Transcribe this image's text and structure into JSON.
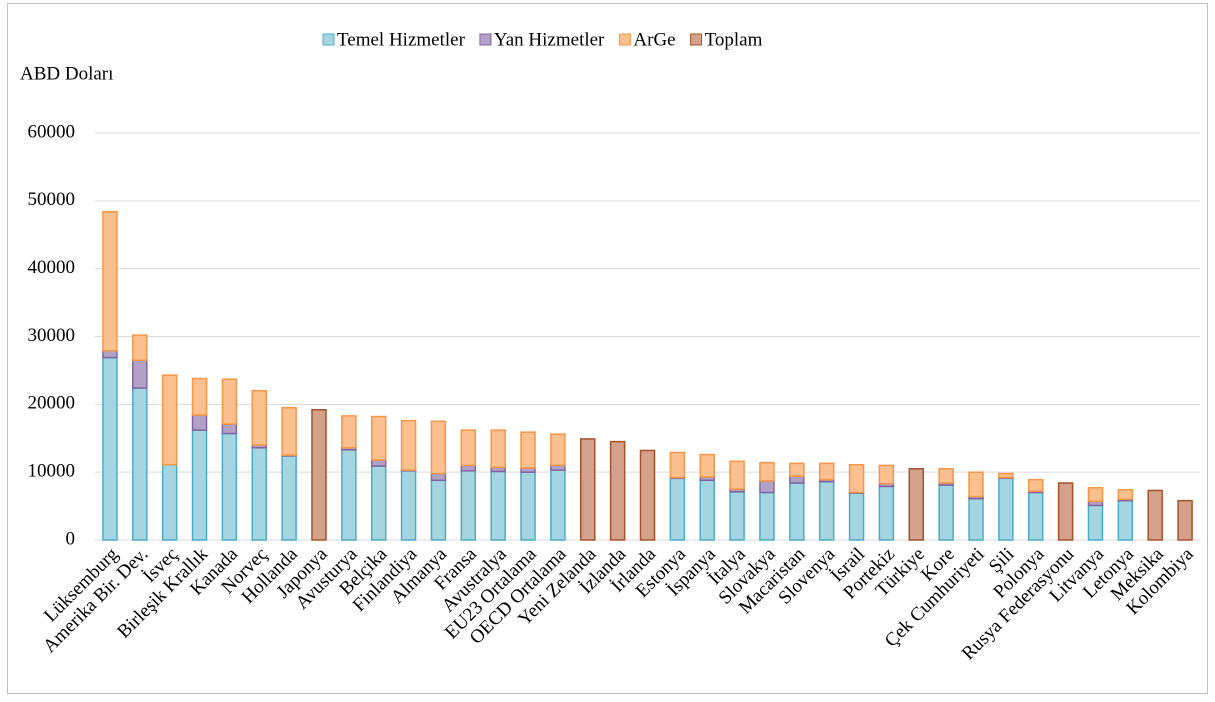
{
  "chart_data": {
    "type": "bar",
    "stacked": true,
    "y_label": "ABD Doları",
    "categories": [
      "Lüksemburg",
      "Amerika Bir. Dev.",
      "İsveç",
      "Birleşik Krallık",
      "Kanada",
      "Norveç",
      "Hollanda",
      "Japonya",
      "Avusturya",
      "Belçika",
      "Finlandiya",
      "Almanya",
      "Fransa",
      "Avustralya",
      "EU23 Ortalama",
      "OECD Ortalama",
      "Yeni Zelanda",
      "İzlanda",
      "İrlanda",
      "Estonya",
      "İspanya",
      "İtalya",
      "Slovakya",
      "Macaristan",
      "Slovenya",
      "İsrail",
      "Portekiz",
      "Türkiye",
      "Kore",
      "Çek Cumhuriyeti",
      "Şili",
      "Polonya",
      "Rusya Federasyonu",
      "Litvanya",
      "Letonya",
      "Meksika",
      "Kolombiya"
    ],
    "series": [
      {
        "name": "Temel Hizmetler",
        "color": "#a5d5e0",
        "stroke": "#4bacc6",
        "values": [
          26900,
          22400,
          11100,
          16200,
          15700,
          13600,
          12400,
          null,
          13300,
          10900,
          10200,
          8800,
          10200,
          10100,
          10000,
          10300,
          null,
          null,
          null,
          9100,
          8800,
          7100,
          7000,
          8400,
          8600,
          6900,
          7900,
          null,
          8100,
          6100,
          9100,
          7000,
          null,
          5100,
          5800,
          null,
          null
        ]
      },
      {
        "name": "Yan Hizmetler",
        "color": "#b3a2c7",
        "stroke": "#8064a2",
        "values": [
          1000,
          4100,
          0,
          2200,
          1400,
          400,
          100,
          null,
          300,
          900,
          100,
          1000,
          800,
          600,
          600,
          700,
          null,
          null,
          null,
          100,
          500,
          400,
          1700,
          1000,
          300,
          100,
          400,
          null,
          300,
          300,
          100,
          200,
          null,
          600,
          200,
          null,
          null
        ]
      },
      {
        "name": "ArGe",
        "color": "#fac090",
        "stroke": "#f79646",
        "values": [
          20500,
          3700,
          13200,
          5400,
          6600,
          8000,
          7000,
          null,
          4700,
          6400,
          7300,
          7700,
          5200,
          5500,
          5300,
          4600,
          null,
          null,
          null,
          3700,
          3300,
          4100,
          2700,
          1900,
          2400,
          4100,
          2700,
          null,
          2100,
          3600,
          600,
          1700,
          null,
          2000,
          1400,
          null,
          null
        ]
      },
      {
        "name": "Toplam",
        "color": "#d4a28c",
        "stroke": "#a5522b",
        "values": [
          null,
          null,
          null,
          null,
          null,
          null,
          null,
          19200,
          null,
          null,
          null,
          null,
          null,
          null,
          null,
          null,
          14900,
          14500,
          13200,
          null,
          null,
          null,
          null,
          null,
          null,
          null,
          null,
          10500,
          null,
          null,
          null,
          null,
          8400,
          null,
          null,
          7300,
          5800
        ]
      }
    ],
    "ylim": [
      0,
      60000
    ],
    "yticks": [
      0,
      10000,
      20000,
      30000,
      40000,
      50000,
      60000
    ],
    "grid": true,
    "legend": "top"
  }
}
